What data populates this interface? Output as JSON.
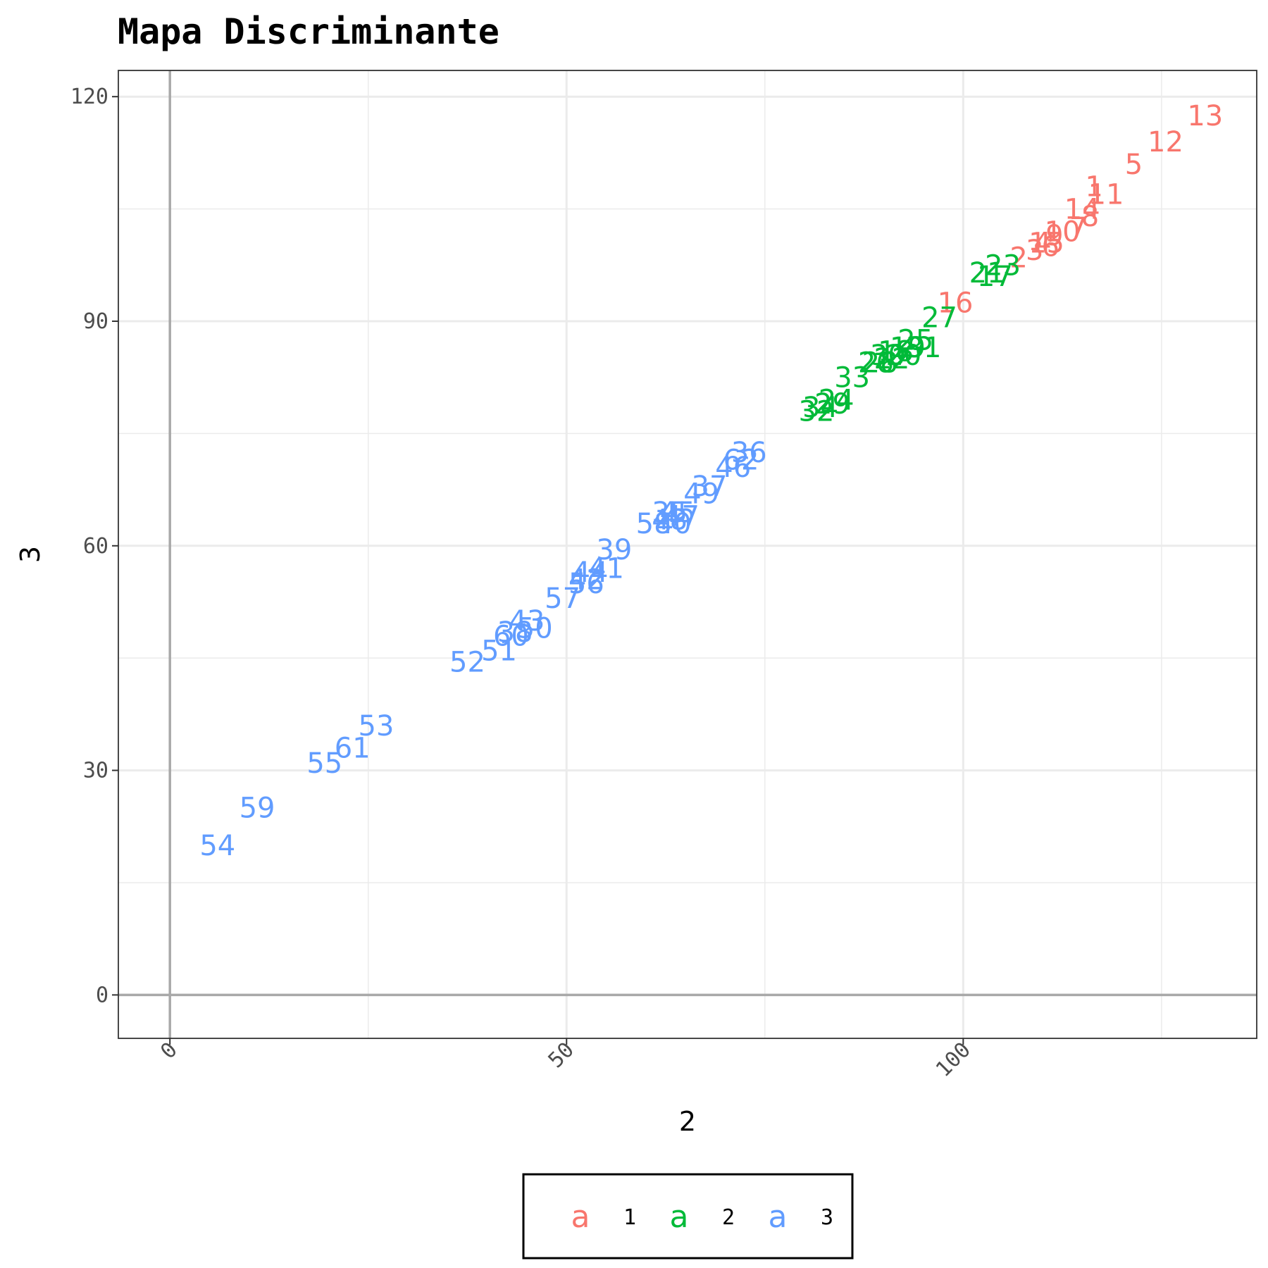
{
  "chart_data": {
    "type": "scatter",
    "title": "Mapa Discriminante",
    "xlabel": "2",
    "ylabel": "3",
    "xlim": [
      -6.5,
      137
    ],
    "ylim": [
      -5.8,
      123.5
    ],
    "x_ticks": [
      0,
      50,
      100
    ],
    "y_ticks": [
      0,
      30,
      60,
      90,
      120
    ],
    "grid": true,
    "legend_position": "bottom",
    "legend_key_glyph": "a",
    "series": [
      {
        "name": "1",
        "color": "#F8766D",
        "points": [
          {
            "label": "13",
            "x": 130.5,
            "y": 117.5
          },
          {
            "label": "12",
            "x": 125.5,
            "y": 114
          },
          {
            "label": "5",
            "x": 121.5,
            "y": 111
          },
          {
            "label": "11",
            "x": 118,
            "y": 107
          },
          {
            "label": "1",
            "x": 116.5,
            "y": 108
          },
          {
            "label": "14",
            "x": 115,
            "y": 105
          },
          {
            "label": "8",
            "x": 116,
            "y": 104
          },
          {
            "label": "7",
            "x": 114.5,
            "y": 102.5
          },
          {
            "label": "10",
            "x": 112.5,
            "y": 102
          },
          {
            "label": "9",
            "x": 111.5,
            "y": 101.5
          },
          {
            "label": "4",
            "x": 110,
            "y": 100.5
          },
          {
            "label": "6",
            "x": 111,
            "y": 100
          },
          {
            "label": "15",
            "x": 110.5,
            "y": 100.5
          },
          {
            "label": "3",
            "x": 109,
            "y": 99.5
          },
          {
            "label": "2",
            "x": 107,
            "y": 98.5
          },
          {
            "label": "16",
            "x": 99,
            "y": 92.5
          }
        ]
      },
      {
        "name": "2",
        "color": "#00BA38",
        "points": [
          {
            "label": "23",
            "x": 105,
            "y": 97.5
          },
          {
            "label": "17",
            "x": 104,
            "y": 96
          },
          {
            "label": "21",
            "x": 103,
            "y": 96.5
          },
          {
            "label": "27",
            "x": 97,
            "y": 90.5
          },
          {
            "label": "25",
            "x": 94,
            "y": 87.5
          },
          {
            "label": "31",
            "x": 95,
            "y": 86.5
          },
          {
            "label": "19",
            "x": 93,
            "y": 86.5
          },
          {
            "label": "20",
            "x": 92.5,
            "y": 85.5
          },
          {
            "label": "22",
            "x": 91,
            "y": 85
          },
          {
            "label": "18",
            "x": 91.5,
            "y": 86
          },
          {
            "label": "30",
            "x": 90.5,
            "y": 85.5
          },
          {
            "label": "28",
            "x": 89.5,
            "y": 84.5
          },
          {
            "label": "26",
            "x": 89,
            "y": 84.5
          },
          {
            "label": "33",
            "x": 86,
            "y": 82.5
          },
          {
            "label": "24",
            "x": 84,
            "y": 79.5
          },
          {
            "label": "29",
            "x": 83.5,
            "y": 79
          },
          {
            "label": "34",
            "x": 82,
            "y": 78.5
          },
          {
            "label": "32",
            "x": 81.5,
            "y": 78
          }
        ]
      },
      {
        "name": "3",
        "color": "#619CFF",
        "points": [
          {
            "label": "36",
            "x": 73,
            "y": 72.5
          },
          {
            "label": "62",
            "x": 72,
            "y": 71.5
          },
          {
            "label": "46",
            "x": 71,
            "y": 70.5
          },
          {
            "label": "37",
            "x": 68,
            "y": 68
          },
          {
            "label": "49",
            "x": 67,
            "y": 67
          },
          {
            "label": "45",
            "x": 64,
            "y": 64.5
          },
          {
            "label": "47",
            "x": 64.5,
            "y": 64
          },
          {
            "label": "35",
            "x": 63,
            "y": 64.5
          },
          {
            "label": "48",
            "x": 63,
            "y": 63.5
          },
          {
            "label": "40",
            "x": 63.5,
            "y": 63
          },
          {
            "label": "58",
            "x": 61,
            "y": 63
          },
          {
            "label": "39",
            "x": 56,
            "y": 59.5
          },
          {
            "label": "41",
            "x": 55,
            "y": 57
          },
          {
            "label": "44",
            "x": 53,
            "y": 56.5
          },
          {
            "label": "42",
            "x": 52.5,
            "y": 55.5
          },
          {
            "label": "56",
            "x": 52.5,
            "y": 55
          },
          {
            "label": "57",
            "x": 49.5,
            "y": 53
          },
          {
            "label": "43",
            "x": 45,
            "y": 50
          },
          {
            "label": "50",
            "x": 46,
            "y": 49
          },
          {
            "label": "60",
            "x": 43,
            "y": 48
          },
          {
            "label": "38",
            "x": 43.5,
            "y": 48.5
          },
          {
            "label": "51",
            "x": 41.5,
            "y": 46
          },
          {
            "label": "52",
            "x": 37.5,
            "y": 44.5
          },
          {
            "label": "53",
            "x": 26,
            "y": 36
          },
          {
            "label": "61",
            "x": 23,
            "y": 33
          },
          {
            "label": "55",
            "x": 19.5,
            "y": 31
          },
          {
            "label": "59",
            "x": 11,
            "y": 25
          },
          {
            "label": "54",
            "x": 6,
            "y": 20
          }
        ]
      }
    ]
  }
}
